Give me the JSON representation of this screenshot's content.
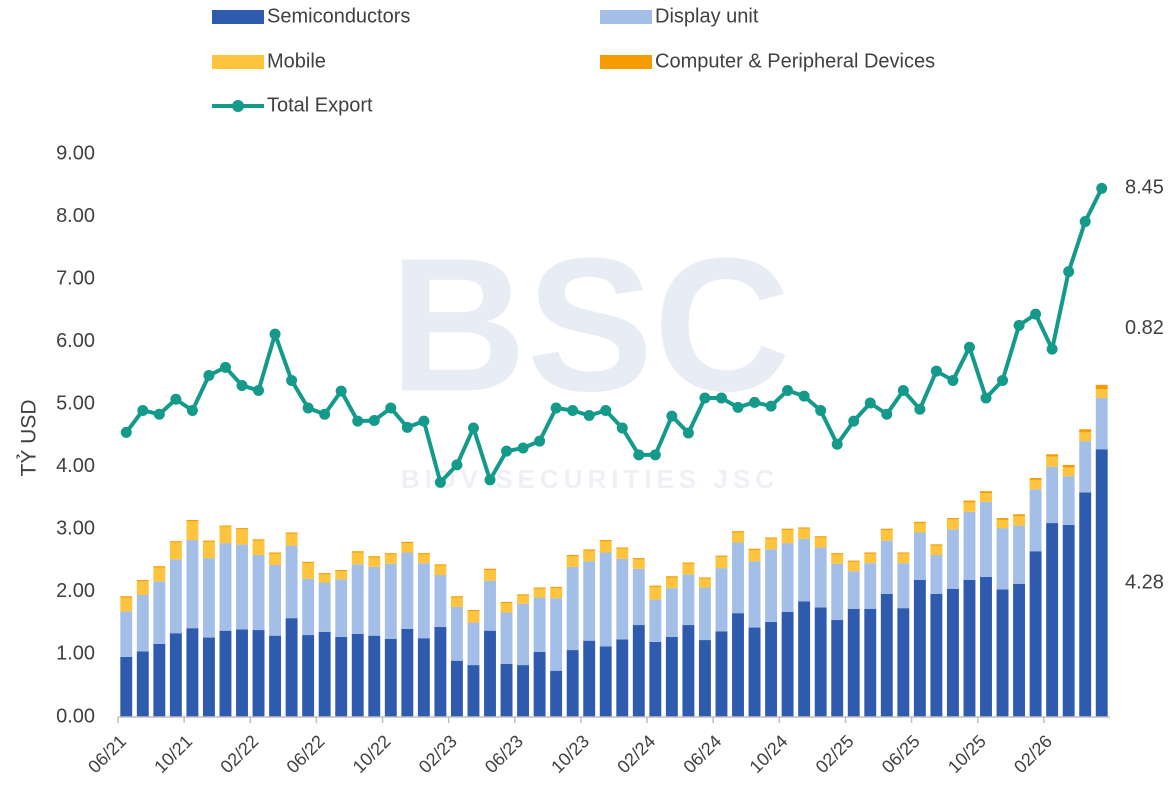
{
  "watermark": {
    "logo": "BSC",
    "text": "BIDV SECURITIES JSC"
  },
  "chart_data": {
    "type": "bar",
    "stacked": true,
    "y_label": "TỶ USD",
    "categories": [
      "06/21",
      null,
      null,
      null,
      "10/21",
      null,
      null,
      null,
      "02/22",
      null,
      null,
      null,
      "06/22",
      null,
      null,
      null,
      "10/22",
      null,
      null,
      null,
      "02/23",
      null,
      null,
      null,
      "06/23",
      null,
      null,
      null,
      "10/23",
      null,
      null,
      null,
      "02/24",
      null,
      null,
      null,
      "06/24",
      null,
      null,
      null,
      "10/24",
      null,
      null,
      null,
      "02/25",
      null,
      null,
      null,
      "06/25",
      null,
      null,
      null,
      "10/25",
      null,
      null,
      null,
      "02/26",
      null,
      null,
      null
    ],
    "ylim": [
      0,
      9
    ],
    "yticks": [
      {
        "value": 0,
        "label": "0.00"
      },
      {
        "value": 1,
        "label": "1.00"
      },
      {
        "value": 2,
        "label": "2.00"
      },
      {
        "value": 3,
        "label": "3.00"
      },
      {
        "value": 4,
        "label": "4.00"
      },
      {
        "value": 5,
        "label": "5.00"
      },
      {
        "value": 6,
        "label": "6.00"
      },
      {
        "value": 7,
        "label": "7.00"
      },
      {
        "value": 8,
        "label": "8.00"
      },
      {
        "value": 9,
        "label": "9.00"
      }
    ],
    "grid": false,
    "series": [
      {
        "name": "Semiconductors",
        "color": "#2f5bae",
        "label_last": true,
        "values": [
          0.96,
          1.05,
          1.17,
          1.34,
          1.42,
          1.27,
          1.38,
          1.4,
          1.39,
          1.3,
          1.58,
          1.31,
          1.36,
          1.28,
          1.33,
          1.3,
          1.25,
          1.41,
          1.26,
          1.44,
          0.9,
          0.83,
          1.38,
          0.85,
          0.83,
          1.04,
          0.74,
          1.07,
          1.22,
          1.13,
          1.24,
          1.47,
          1.2,
          1.28,
          1.47,
          1.23,
          1.37,
          1.66,
          1.43,
          1.52,
          1.68,
          1.85,
          1.75,
          1.55,
          1.73,
          1.73,
          1.97,
          1.74,
          2.19,
          1.97,
          2.05,
          2.19,
          2.24,
          2.04,
          2.13,
          2.65,
          3.1,
          3.07,
          3.59,
          4.28
        ]
      },
      {
        "name": "Display unit",
        "color": "#a3bfe8",
        "label_last": true,
        "values": [
          0.73,
          0.9,
          1.0,
          1.18,
          1.41,
          1.27,
          1.4,
          1.36,
          1.2,
          1.13,
          1.16,
          0.9,
          0.79,
          0.92,
          1.11,
          1.1,
          1.2,
          1.22,
          1.2,
          0.83,
          0.86,
          0.68,
          0.8,
          0.82,
          0.98,
          0.87,
          1.16,
          1.33,
          1.27,
          1.5,
          1.29,
          0.9,
          0.68,
          0.78,
          0.81,
          0.84,
          1.01,
          1.13,
          1.06,
          1.16,
          1.1,
          1.0,
          0.96,
          0.9,
          0.6,
          0.73,
          0.85,
          0.72,
          0.76,
          0.62,
          0.95,
          1.09,
          1.2,
          0.98,
          0.93,
          0.99,
          0.9,
          0.78,
          0.82,
          0.82
        ]
      },
      {
        "name": "Mobile",
        "color": "#ffc43d",
        "values": [
          0.22,
          0.22,
          0.22,
          0.27,
          0.3,
          0.26,
          0.26,
          0.24,
          0.23,
          0.18,
          0.19,
          0.25,
          0.13,
          0.13,
          0.19,
          0.15,
          0.15,
          0.15,
          0.14,
          0.15,
          0.15,
          0.18,
          0.17,
          0.15,
          0.13,
          0.14,
          0.16,
          0.17,
          0.17,
          0.18,
          0.16,
          0.15,
          0.2,
          0.17,
          0.17,
          0.14,
          0.18,
          0.16,
          0.18,
          0.17,
          0.21,
          0.16,
          0.16,
          0.15,
          0.15,
          0.15,
          0.17,
          0.15,
          0.15,
          0.15,
          0.16,
          0.15,
          0.14,
          0.13,
          0.15,
          0.15,
          0.16,
          0.14,
          0.14,
          0.14
        ]
      },
      {
        "name": "Computer & Peripheral Devices",
        "color": "#f59d00",
        "values": [
          0.02,
          0.02,
          0.02,
          0.02,
          0.02,
          0.02,
          0.02,
          0.02,
          0.02,
          0.02,
          0.02,
          0.02,
          0.02,
          0.02,
          0.02,
          0.02,
          0.02,
          0.02,
          0.02,
          0.02,
          0.02,
          0.02,
          0.02,
          0.02,
          0.02,
          0.02,
          0.02,
          0.02,
          0.02,
          0.02,
          0.02,
          0.02,
          0.02,
          0.02,
          0.02,
          0.02,
          0.02,
          0.02,
          0.02,
          0.02,
          0.02,
          0.02,
          0.02,
          0.02,
          0.02,
          0.02,
          0.02,
          0.02,
          0.02,
          0.02,
          0.02,
          0.03,
          0.03,
          0.03,
          0.03,
          0.03,
          0.04,
          0.04,
          0.05,
          0.07
        ]
      },
      {
        "name": "Total Export",
        "type": "line",
        "color": "#139a8b",
        "label_last": true,
        "values": [
          4.55,
          4.9,
          4.84,
          5.08,
          4.9,
          5.46,
          5.59,
          5.3,
          5.22,
          6.12,
          5.38,
          4.94,
          4.84,
          5.21,
          4.73,
          4.74,
          4.94,
          4.63,
          4.73,
          3.75,
          4.03,
          4.62,
          3.79,
          4.25,
          4.3,
          4.41,
          4.94,
          4.9,
          4.82,
          4.9,
          4.62,
          4.19,
          4.19,
          4.81,
          4.54,
          5.1,
          5.1,
          4.95,
          5.03,
          4.97,
          5.22,
          5.13,
          4.9,
          4.36,
          4.73,
          5.02,
          4.84,
          5.22,
          4.92,
          5.53,
          5.38,
          5.91,
          5.1,
          5.38,
          6.26,
          6.44,
          5.88,
          7.12,
          7.92,
          8.45
        ]
      }
    ]
  }
}
